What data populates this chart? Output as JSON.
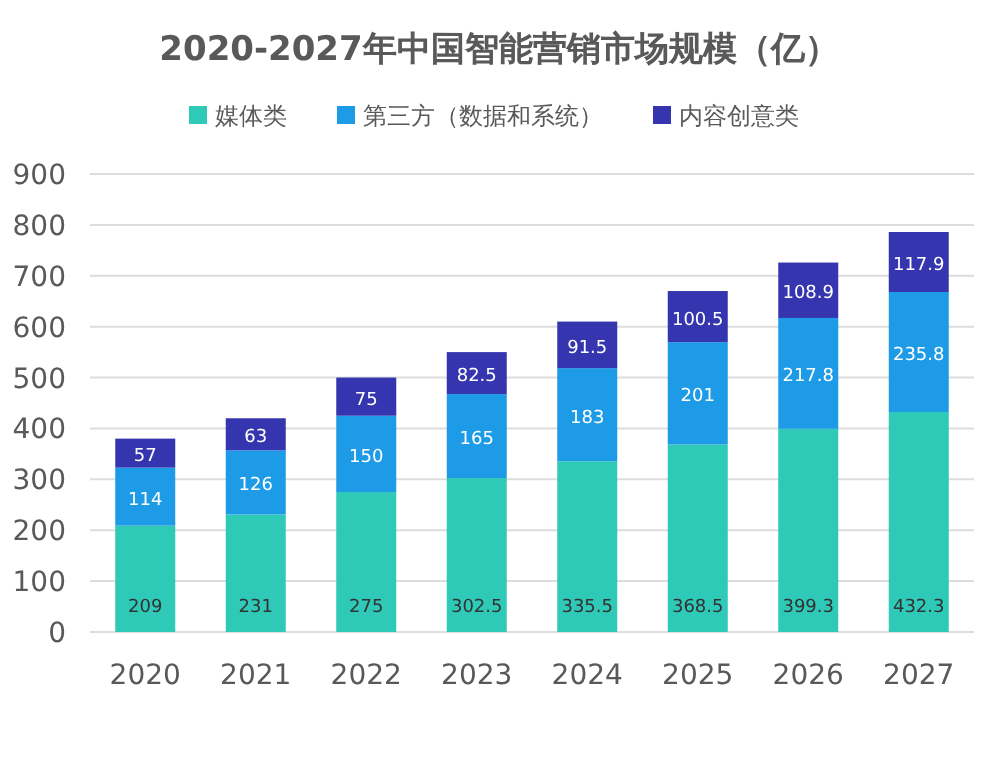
{
  "chart_data": {
    "type": "bar",
    "stacked": true,
    "title": "2020-2027年中国智能营销市场规模（亿）",
    "categories": [
      "2020",
      "2021",
      "2022",
      "2023",
      "2024",
      "2025",
      "2026",
      "2027"
    ],
    "series": [
      {
        "name": "媒体类",
        "color": "#2ec9b7",
        "values": [
          209,
          231,
          275,
          302.5,
          335.5,
          368.5,
          399.3,
          432.3
        ]
      },
      {
        "name": "第三方（数据和系统）",
        "color": "#1e9be6",
        "values": [
          114,
          126,
          150,
          165,
          183,
          201,
          217.8,
          235.8
        ]
      },
      {
        "name": "内容创意类",
        "color": "#3535b0",
        "values": [
          57,
          63,
          75,
          82.5,
          91.5,
          100.5,
          108.9,
          117.9
        ]
      }
    ],
    "ylim": [
      0,
      900
    ],
    "yticks": [
      0,
      100,
      200,
      300,
      400,
      500,
      600,
      700,
      800,
      900
    ],
    "grid": "y",
    "legend": "top",
    "data_labels": true
  }
}
